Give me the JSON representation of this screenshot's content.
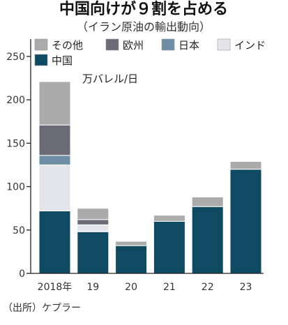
{
  "chart_data": {
    "type": "bar",
    "stacked": true,
    "title": "中国向けが９割を占める",
    "subtitle": "（イラン原油の輸出動向）",
    "unit": "万バレル/日",
    "source": "（出所）ケプラー",
    "categories": [
      "2018年",
      "19",
      "20",
      "21",
      "22",
      "23"
    ],
    "ylim": [
      0,
      270
    ],
    "yticks": [
      0,
      50,
      100,
      150,
      200,
      250
    ],
    "legend_order": [
      "その他",
      "欧州",
      "日本",
      "インド",
      "中国"
    ],
    "series": [
      {
        "name": "中国",
        "color": "#0f4a63",
        "values": [
          72,
          48,
          32,
          60,
          77,
          120
        ]
      },
      {
        "name": "インド",
        "color": "#e4e5ea",
        "values": [
          53,
          8,
          0,
          0,
          0,
          0
        ]
      },
      {
        "name": "日本",
        "color": "#6e8ea6",
        "values": [
          11,
          0,
          0,
          0,
          0,
          0
        ]
      },
      {
        "name": "欧州",
        "color": "#6b6b78",
        "values": [
          35,
          6,
          0,
          0,
          0,
          0
        ]
      },
      {
        "name": "その他",
        "color": "#ababab",
        "values": [
          50,
          13,
          5,
          7,
          11,
          9
        ]
      }
    ]
  }
}
